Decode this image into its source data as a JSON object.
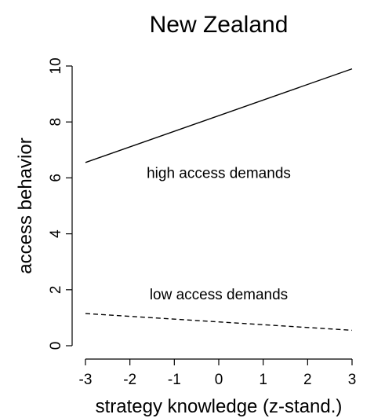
{
  "chart_data": {
    "type": "line",
    "title": "New Zealand",
    "xlabel": "strategy knowledge (z-stand.)",
    "ylabel": "access behavior",
    "xlim": [
      -3,
      3
    ],
    "ylim": [
      0,
      10
    ],
    "x_ticks": [
      "-3",
      "-2",
      "-1",
      "0",
      "1",
      "2",
      "3"
    ],
    "y_ticks": [
      "0",
      "2",
      "4",
      "6",
      "8",
      "10"
    ],
    "grid": false,
    "legend": "none",
    "series": [
      {
        "style": "solid",
        "color": "#000000",
        "x": [
          -3,
          3
        ],
        "y": [
          6.55,
          9.9
        ]
      },
      {
        "style": "dashed",
        "color": "#000000",
        "x": [
          -3,
          3
        ],
        "y": [
          1.15,
          0.55
        ]
      }
    ],
    "annotations": [
      {
        "text": "high access demands",
        "x": 0,
        "y": 6.2
      },
      {
        "text": "low access demands",
        "x": 0,
        "y": 1.85
      }
    ]
  }
}
